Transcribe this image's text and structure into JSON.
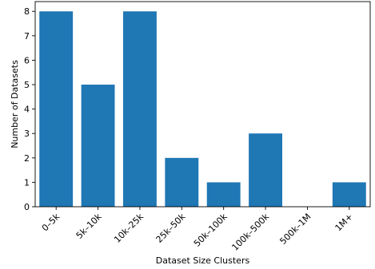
{
  "chart_data": {
    "type": "bar",
    "title": "",
    "xlabel": "Dataset Size Clusters",
    "ylabel": "Number of Datasets",
    "categories": [
      "0–5k",
      "5k–10k",
      "10k–25k",
      "25k–50k",
      "50k–100k",
      "100k–500k",
      "500k–1M",
      "1M+"
    ],
    "values": [
      8,
      5,
      8,
      2,
      1,
      3,
      0,
      1
    ],
    "ylim": [
      0,
      8.4
    ],
    "yticks": [
      0,
      1,
      2,
      3,
      4,
      5,
      6,
      7,
      8
    ],
    "bar_color": "#1f77b4",
    "grid": false,
    "legend": "none"
  }
}
